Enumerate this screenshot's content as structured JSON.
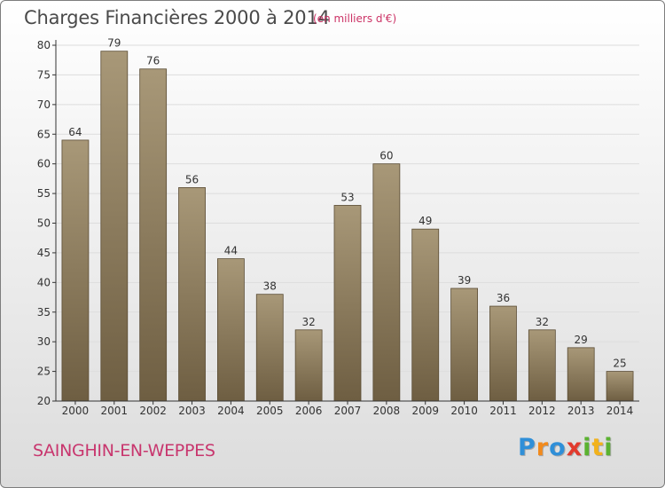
{
  "title": "Charges Financières 2000 à 2014",
  "subtitle": "(en milliers d'€)",
  "commune": "SAINGHIN-EN-WEPPES",
  "brand": {
    "letters": [
      "P",
      "r",
      "o",
      "x",
      "i",
      "t",
      "i"
    ],
    "colors": [
      "#2f8fd8",
      "#f28a1c",
      "#2f8fd8",
      "#e23a2d",
      "#5bb230",
      "#f2b21c",
      "#5bb230"
    ]
  },
  "colors": {
    "bar_top": "#a89878",
    "bar_bottom": "#6e5e42",
    "bar_edge": "#5a4c34",
    "grid": "#dddddd",
    "axis": "#333333"
  },
  "chart_data": {
    "type": "bar",
    "categories": [
      "2000",
      "2001",
      "2002",
      "2003",
      "2004",
      "2005",
      "2006",
      "2007",
      "2008",
      "2009",
      "2010",
      "2011",
      "2012",
      "2013",
      "2014"
    ],
    "values": [
      64,
      79,
      76,
      56,
      44,
      38,
      32,
      53,
      60,
      49,
      39,
      36,
      32,
      29,
      25
    ],
    "ylim": [
      20,
      80
    ],
    "yticks": [
      20,
      25,
      30,
      35,
      40,
      45,
      50,
      55,
      60,
      65,
      70,
      75,
      80
    ],
    "grid": true,
    "title": "Charges Financières 2000 à 2014",
    "xlabel": "",
    "ylabel": ""
  }
}
